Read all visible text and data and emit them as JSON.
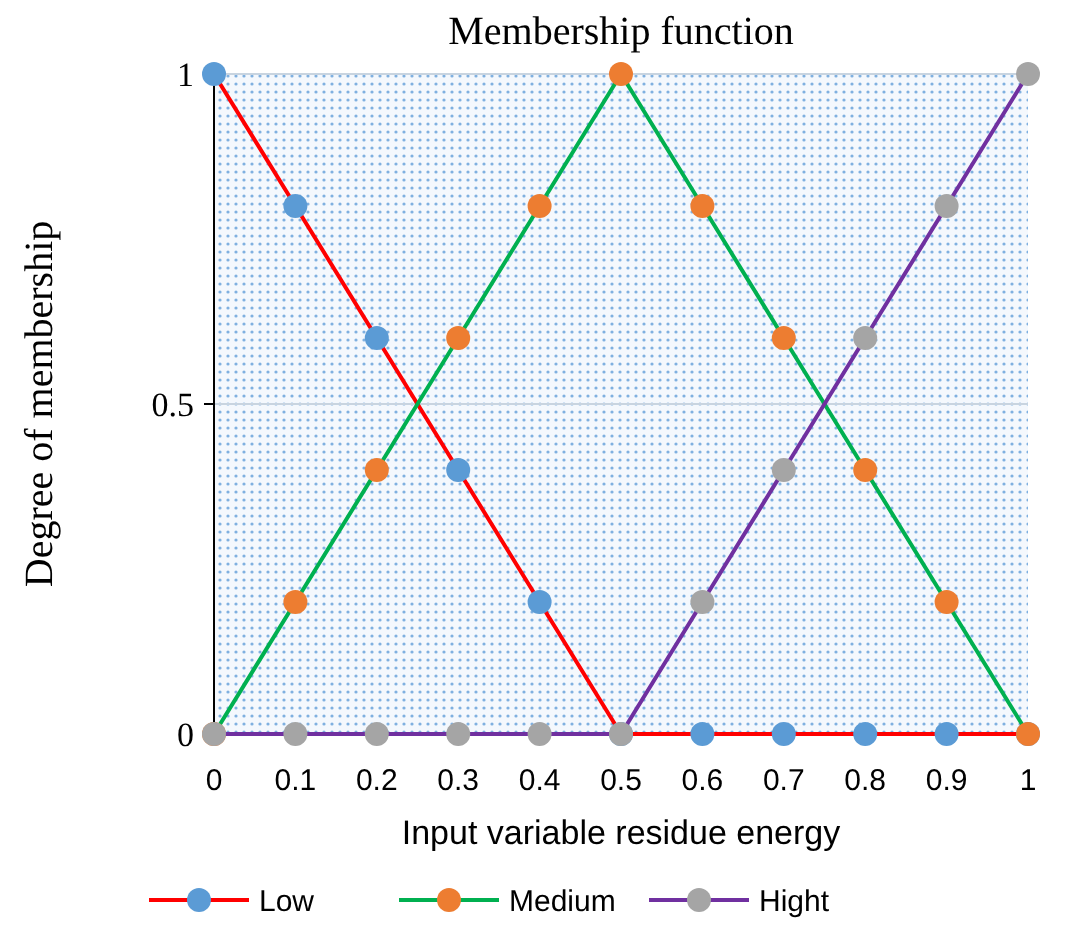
{
  "chart_data": {
    "type": "line",
    "title": "Membership function",
    "xlabel": "Input variable residue energy",
    "ylabel": "Degree of membership",
    "x": [
      0,
      0.1,
      0.2,
      0.3,
      0.4,
      0.5,
      0.6,
      0.7,
      0.8,
      0.9,
      1
    ],
    "xlim": [
      0,
      1
    ],
    "xticks": [
      0,
      0.1,
      0.2,
      0.3,
      0.4,
      0.5,
      0.6,
      0.7,
      0.8,
      0.9,
      1
    ],
    "ylim": [
      0,
      1
    ],
    "yticks": [
      0,
      0.5,
      1
    ],
    "grid": "y",
    "legend": "bottom",
    "marker": "circle",
    "line_style": "solid",
    "series": [
      {
        "name": "Low",
        "color": "#ff0000",
        "colors": [
          "#5b9bd5",
          "#5b9bd5",
          "#5b9bd5",
          "#5b9bd5",
          "#5b9bd5",
          "#5b9bd5",
          "#5b9bd5",
          "#5b9bd5",
          "#5b9bd5",
          "#5b9bd5",
          "#5b9bd5"
        ],
        "values": [
          1,
          0.8,
          0.6,
          0.4,
          0.2,
          0,
          0,
          0,
          0,
          0,
          0
        ]
      },
      {
        "name": "Medium",
        "color": "#00b050",
        "colors": [
          "#ed7d31",
          "#ed7d31",
          "#ed7d31",
          "#ed7d31",
          "#ed7d31",
          "#ed7d31",
          "#ed7d31",
          "#ed7d31",
          "#ed7d31",
          "#ed7d31",
          "#ed7d31"
        ],
        "values": [
          0,
          0.2,
          0.4,
          0.6,
          0.8,
          1,
          0.8,
          0.6,
          0.4,
          0.2,
          0
        ]
      },
      {
        "name": "Hight",
        "color": "#7030a0",
        "colors": [
          "#a5a5a5",
          "#a5a5a5",
          "#a5a5a5",
          "#a5a5a5",
          "#a5a5a5",
          "#a5a5a5",
          "#a5a5a5",
          "#a5a5a5",
          "#a5a5a5",
          "#a5a5a5",
          "#a5a5a5"
        ],
        "values": [
          0,
          0,
          0,
          0,
          0,
          0,
          0.2,
          0.4,
          0.6,
          0.8,
          1
        ]
      }
    ]
  }
}
